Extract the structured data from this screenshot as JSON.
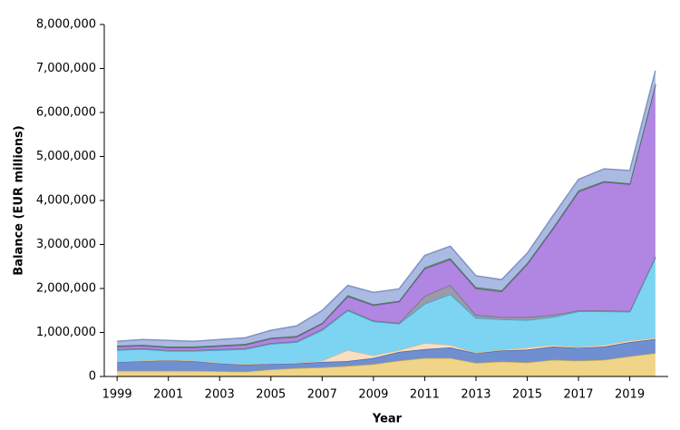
{
  "chart_data": {
    "type": "stacked_area",
    "x_label": "Year",
    "y_label": "Balance (EUR millions)",
    "x": [
      1999,
      2000,
      2001,
      2002,
      2003,
      2004,
      2005,
      2006,
      2007,
      2008,
      2009,
      2010,
      2011,
      2012,
      2013,
      2014,
      2015,
      2016,
      2017,
      2018,
      2019,
      2020
    ],
    "xlim": [
      1998.5,
      2020.5
    ],
    "xticks": [
      1999,
      2001,
      2003,
      2005,
      2007,
      2009,
      2011,
      2013,
      2015,
      2017,
      2019
    ],
    "ylim": [
      0,
      8000000
    ],
    "yticks": [
      {
        "value": 0,
        "label": "0"
      },
      {
        "value": 1000000,
        "label": "1,000,000"
      },
      {
        "value": 2000000,
        "label": "2,000,000"
      },
      {
        "value": 3000000,
        "label": "3,000,000"
      },
      {
        "value": 4000000,
        "label": "4,000,000"
      },
      {
        "value": 5000000,
        "label": "5,000,000"
      },
      {
        "value": 6000000,
        "label": "6,000,000"
      },
      {
        "value": 7000000,
        "label": "7,000,000"
      },
      {
        "value": 8000000,
        "label": "8,000,000"
      }
    ],
    "series": [
      {
        "color": "#f0d488",
        "edge": "#c8a850",
        "values": [
          130000,
          130000,
          130000,
          130000,
          120000,
          110000,
          160000,
          190000,
          210000,
          240000,
          280000,
          360000,
          420000,
          420000,
          310000,
          340000,
          320000,
          380000,
          360000,
          380000,
          460000,
          530000
        ]
      },
      {
        "color": "#6f8fd0",
        "edge": "#4a68a8",
        "values": [
          200000,
          220000,
          240000,
          220000,
          180000,
          160000,
          130000,
          110000,
          120000,
          110000,
          140000,
          200000,
          200000,
          240000,
          220000,
          250000,
          290000,
          300000,
          290000,
          300000,
          320000,
          320000
        ]
      },
      {
        "color": "#f6dfc4",
        "edge": "#d8b890",
        "values": [
          10000,
          10000,
          10000,
          10000,
          10000,
          10000,
          10000,
          10000,
          30000,
          250000,
          60000,
          40000,
          140000,
          60000,
          10000,
          20000,
          50000,
          40000,
          20000,
          40000,
          40000,
          30000
        ]
      },
      {
        "color": "#7dd3f2",
        "edge": "#3aa8c8",
        "values": [
          260000,
          260000,
          200000,
          220000,
          290000,
          340000,
          440000,
          470000,
          690000,
          900000,
          770000,
          600000,
          890000,
          1150000,
          790000,
          690000,
          620000,
          630000,
          810000,
          760000,
          650000,
          1820000
        ]
      },
      {
        "color": "#9a9aaa",
        "edge": "#707080",
        "values": [
          20000,
          20000,
          20000,
          20000,
          20000,
          20000,
          20000,
          20000,
          30000,
          20000,
          20000,
          20000,
          180000,
          210000,
          70000,
          50000,
          70000,
          50000,
          20000,
          20000,
          20000,
          20000
        ]
      },
      {
        "color": "#b185e2",
        "edge": "#7e4cb8",
        "values": [
          60000,
          60000,
          60000,
          60000,
          70000,
          80000,
          100000,
          100000,
          120000,
          300000,
          350000,
          480000,
          620000,
          580000,
          600000,
          580000,
          1200000,
          1950000,
          2700000,
          2920000,
          2880000,
          3900000
        ]
      },
      {
        "color": "#5e9e5e",
        "edge": "#3e7e3e",
        "values": [
          20000,
          20000,
          20000,
          20000,
          20000,
          20000,
          20000,
          20000,
          20000,
          30000,
          20000,
          20000,
          30000,
          30000,
          30000,
          30000,
          30000,
          30000,
          30000,
          20000,
          20000,
          30000
        ]
      },
      {
        "color": "#aabae2",
        "edge": "#7f93c4",
        "values": [
          100000,
          120000,
          140000,
          120000,
          130000,
          140000,
          170000,
          230000,
          280000,
          220000,
          270000,
          270000,
          270000,
          270000,
          260000,
          240000,
          220000,
          270000,
          250000,
          280000,
          290000,
          300000
        ]
      }
    ]
  }
}
